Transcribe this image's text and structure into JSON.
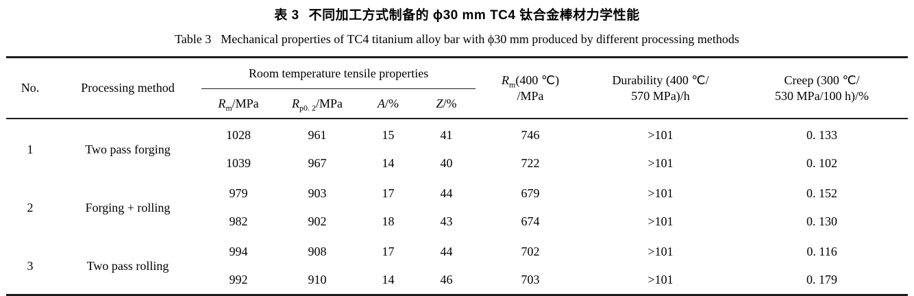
{
  "caption_cn": {
    "label": "表 3",
    "text": "不同加工方式制备的 ϕ30 mm TC4 钛合金棒材力学性能"
  },
  "caption_en": {
    "label": "Table 3",
    "text": "Mechanical properties of TC4 titanium alloy bar with ϕ30 mm produced by different processing methods"
  },
  "header": {
    "no": "No.",
    "method": "Processing method",
    "rt_group": "Room temperature tensile properties",
    "rm": {
      "base": "R",
      "sub": "m",
      "rest": "/MPa"
    },
    "rp02": {
      "base": "R",
      "sub": "p0. 2",
      "rest": "/MPa"
    },
    "a": {
      "base": "A",
      "rest": "/%"
    },
    "z": {
      "base": "Z",
      "rest": "/%"
    },
    "rm400": {
      "line1_base": "R",
      "line1_sub": "m",
      "line1_rest": "(400 ℃)",
      "line2": "/MPa"
    },
    "durability": {
      "line1": "Durability (400 ℃/",
      "line2": "570 MPa)/h"
    },
    "creep": {
      "line1": "Creep (300 ℃/",
      "line2": "530 MPa/100 h)/%"
    }
  },
  "table": {
    "groups": [
      {
        "no": "1",
        "method": "Two pass forging",
        "rows": [
          {
            "rm": "1028",
            "rp02": "961",
            "a": "15",
            "z": "41",
            "rm400": "746",
            "durability": ">101",
            "creep": "0. 133"
          },
          {
            "rm": "1039",
            "rp02": "967",
            "a": "14",
            "z": "40",
            "rm400": "722",
            "durability": ">101",
            "creep": "0. 102"
          }
        ]
      },
      {
        "no": "2",
        "method": "Forging + rolling",
        "rows": [
          {
            "rm": "979",
            "rp02": "903",
            "a": "17",
            "z": "44",
            "rm400": "679",
            "durability": ">101",
            "creep": "0. 152"
          },
          {
            "rm": "982",
            "rp02": "902",
            "a": "18",
            "z": "43",
            "rm400": "674",
            "durability": ">101",
            "creep": "0. 130"
          }
        ]
      },
      {
        "no": "3",
        "method": "Two pass rolling",
        "rows": [
          {
            "rm": "994",
            "rp02": "908",
            "a": "17",
            "z": "44",
            "rm400": "702",
            "durability": ">101",
            "creep": "0. 116"
          },
          {
            "rm": "992",
            "rp02": "910",
            "a": "14",
            "z": "46",
            "rm400": "703",
            "durability": ">101",
            "creep": "0. 179"
          }
        ]
      }
    ]
  },
  "colors": {
    "rule": "#1c1c1c",
    "text": "#000000",
    "background": "#ffffff"
  }
}
